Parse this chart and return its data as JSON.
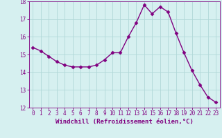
{
  "x": [
    0,
    1,
    2,
    3,
    4,
    5,
    6,
    7,
    8,
    9,
    10,
    11,
    12,
    13,
    14,
    15,
    16,
    17,
    18,
    19,
    20,
    21,
    22,
    23
  ],
  "y": [
    15.4,
    15.2,
    14.9,
    14.6,
    14.4,
    14.3,
    14.3,
    14.3,
    14.4,
    14.7,
    15.1,
    15.1,
    16.0,
    16.8,
    17.8,
    17.3,
    17.7,
    17.4,
    16.2,
    15.1,
    14.1,
    13.3,
    12.6,
    12.3
  ],
  "line_color": "#800080",
  "marker": "D",
  "marker_size": 2.5,
  "line_width": 1.0,
  "bg_color": "#d6f0f0",
  "grid_color": "#b0d8d8",
  "xlabel": "Windchill (Refroidissement éolien,°C)",
  "xlabel_fontsize": 6.5,
  "xlabel_color": "#800080",
  "tick_color": "#800080",
  "tick_fontsize": 5.5,
  "ylim": [
    12,
    18
  ],
  "xlim": [
    -0.5,
    23.5
  ],
  "yticks": [
    12,
    13,
    14,
    15,
    16,
    17,
    18
  ],
  "xticks": [
    0,
    1,
    2,
    3,
    4,
    5,
    6,
    7,
    8,
    9,
    10,
    11,
    12,
    13,
    14,
    15,
    16,
    17,
    18,
    19,
    20,
    21,
    22,
    23
  ]
}
